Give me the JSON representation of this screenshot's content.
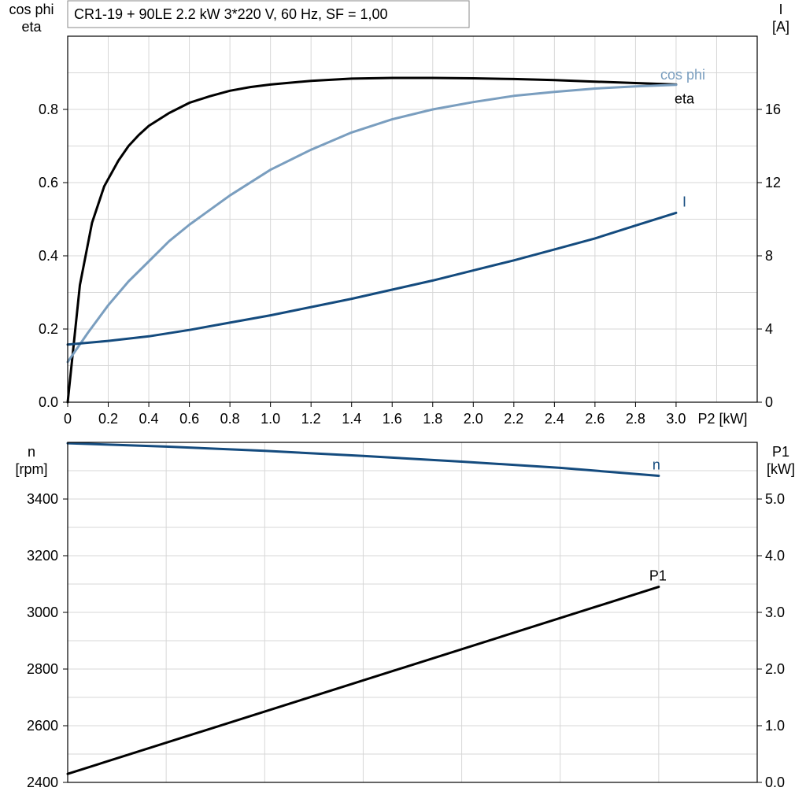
{
  "chart_data": [
    {
      "type": "line",
      "title": "CR1-19 + 90LE   2.2 kW   3*220 V, 60 Hz, SF = 1,00",
      "xlabel": "P2 [kW]",
      "xlim": [
        0,
        3.4
      ],
      "xticks": [
        "0",
        "0.2",
        "0.4",
        "0.6",
        "0.8",
        "1.0",
        "1.2",
        "1.4",
        "1.6",
        "1.8",
        "2.0",
        "2.2",
        "2.4",
        "2.6",
        "2.8",
        "3.0"
      ],
      "ylabel_left": [
        "cos phi",
        "eta"
      ],
      "ylim_left": [
        0,
        1.0
      ],
      "yticks_left": [
        "0.0",
        "0.2",
        "0.4",
        "0.6",
        "0.8"
      ],
      "ylabel_right": [
        "I",
        "[A]"
      ],
      "ylim_right": [
        0,
        20
      ],
      "yticks_right": [
        "0",
        "4",
        "8",
        "12",
        "16"
      ],
      "grid": true,
      "series": [
        {
          "name": "eta",
          "axis": "left",
          "color": "#000000",
          "points": [
            [
              0,
              0
            ],
            [
              0.06,
              0.32
            ],
            [
              0.12,
              0.49
            ],
            [
              0.18,
              0.59
            ],
            [
              0.25,
              0.66
            ],
            [
              0.3,
              0.7
            ],
            [
              0.35,
              0.73
            ],
            [
              0.4,
              0.755
            ],
            [
              0.5,
              0.79
            ],
            [
              0.6,
              0.818
            ],
            [
              0.7,
              0.836
            ],
            [
              0.8,
              0.851
            ],
            [
              0.9,
              0.861
            ],
            [
              1.0,
              0.868
            ],
            [
              1.2,
              0.878
            ],
            [
              1.4,
              0.884
            ],
            [
              1.6,
              0.886
            ],
            [
              1.8,
              0.886
            ],
            [
              2.0,
              0.885
            ],
            [
              2.2,
              0.883
            ],
            [
              2.4,
              0.88
            ],
            [
              2.6,
              0.876
            ],
            [
              2.8,
              0.872
            ],
            [
              3.0,
              0.868
            ]
          ]
        },
        {
          "name": "cos phi",
          "axis": "left",
          "color": "#7a9ebf",
          "points": [
            [
              0,
              0.11
            ],
            [
              0.1,
              0.19
            ],
            [
              0.2,
              0.265
            ],
            [
              0.3,
              0.33
            ],
            [
              0.4,
              0.385
            ],
            [
              0.5,
              0.44
            ],
            [
              0.6,
              0.485
            ],
            [
              0.8,
              0.565
            ],
            [
              1.0,
              0.635
            ],
            [
              1.2,
              0.69
            ],
            [
              1.4,
              0.737
            ],
            [
              1.6,
              0.773
            ],
            [
              1.8,
              0.8
            ],
            [
              2.0,
              0.82
            ],
            [
              2.2,
              0.837
            ],
            [
              2.4,
              0.848
            ],
            [
              2.6,
              0.857
            ],
            [
              2.8,
              0.863
            ],
            [
              3.0,
              0.867
            ]
          ]
        },
        {
          "name": "I",
          "axis": "right",
          "color": "#144b7e",
          "points": [
            [
              0,
              3.15
            ],
            [
              0.2,
              3.35
            ],
            [
              0.4,
              3.6
            ],
            [
              0.6,
              3.95
            ],
            [
              0.8,
              4.35
            ],
            [
              1.0,
              4.75
            ],
            [
              1.2,
              5.2
            ],
            [
              1.4,
              5.65
            ],
            [
              1.6,
              6.15
            ],
            [
              1.8,
              6.65
            ],
            [
              2.0,
              7.2
            ],
            [
              2.2,
              7.75
            ],
            [
              2.4,
              8.35
            ],
            [
              2.6,
              8.95
            ],
            [
              2.8,
              9.65
            ],
            [
              3.0,
              10.35
            ]
          ]
        }
      ]
    },
    {
      "type": "line",
      "xlim": [
        0,
        3.5
      ],
      "ylabel_left": [
        "n",
        "[rpm]"
      ],
      "ylim_left": [
        2400,
        3600
      ],
      "yticks_left": [
        "2400",
        "2600",
        "2800",
        "3000",
        "3200",
        "3400"
      ],
      "ylabel_right": [
        "P1",
        "[kW]"
      ],
      "ylim_right": [
        0,
        6
      ],
      "yticks_right": [
        "0.0",
        "1.0",
        "2.0",
        "3.0",
        "4.0",
        "5.0"
      ],
      "grid": true,
      "series": [
        {
          "name": "n",
          "axis": "left",
          "color": "#144b7e",
          "points": [
            [
              0,
              3597
            ],
            [
              0.5,
              3585
            ],
            [
              1.0,
              3570
            ],
            [
              1.5,
              3552
            ],
            [
              2.0,
              3532
            ],
            [
              2.5,
              3510
            ],
            [
              3.0,
              3482
            ]
          ]
        },
        {
          "name": "P1",
          "axis": "right",
          "color": "#000000",
          "points": [
            [
              0,
              0.15
            ],
            [
              3.0,
              3.45
            ]
          ]
        }
      ]
    }
  ]
}
